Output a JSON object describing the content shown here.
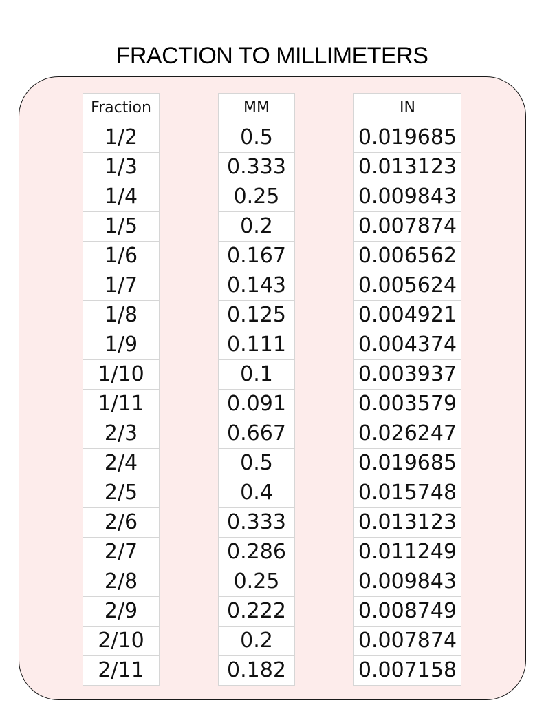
{
  "title": "FRACTION TO MILLIMETERS",
  "colors": {
    "panel_background": "#fdeceb",
    "panel_border": "#1a1a1a",
    "cell_border": "#d6d6d6"
  },
  "table": {
    "headers": [
      "Fraction",
      "MM",
      "IN"
    ],
    "rows": [
      [
        "1/2",
        "0.5",
        "0.019685"
      ],
      [
        "1/3",
        "0.333",
        "0.013123"
      ],
      [
        "1/4",
        "0.25",
        "0.009843"
      ],
      [
        "1/5",
        "0.2",
        "0.007874"
      ],
      [
        "1/6",
        "0.167",
        "0.006562"
      ],
      [
        "1/7",
        "0.143",
        "0.005624"
      ],
      [
        "1/8",
        "0.125",
        "0.004921"
      ],
      [
        "1/9",
        "0.111",
        "0.004374"
      ],
      [
        "1/10",
        "0.1",
        "0.003937"
      ],
      [
        "1/11",
        "0.091",
        "0.003579"
      ],
      [
        "2/3",
        "0.667",
        "0.026247"
      ],
      [
        "2/4",
        "0.5",
        "0.019685"
      ],
      [
        "2/5",
        "0.4",
        "0.015748"
      ],
      [
        "2/6",
        "0.333",
        "0.013123"
      ],
      [
        "2/7",
        "0.286",
        "0.011249"
      ],
      [
        "2/8",
        "0.25",
        "0.009843"
      ],
      [
        "2/9",
        "0.222",
        "0.008749"
      ],
      [
        "2/10",
        "0.2",
        "0.007874"
      ],
      [
        "2/11",
        "0.182",
        "0.007158"
      ]
    ]
  }
}
